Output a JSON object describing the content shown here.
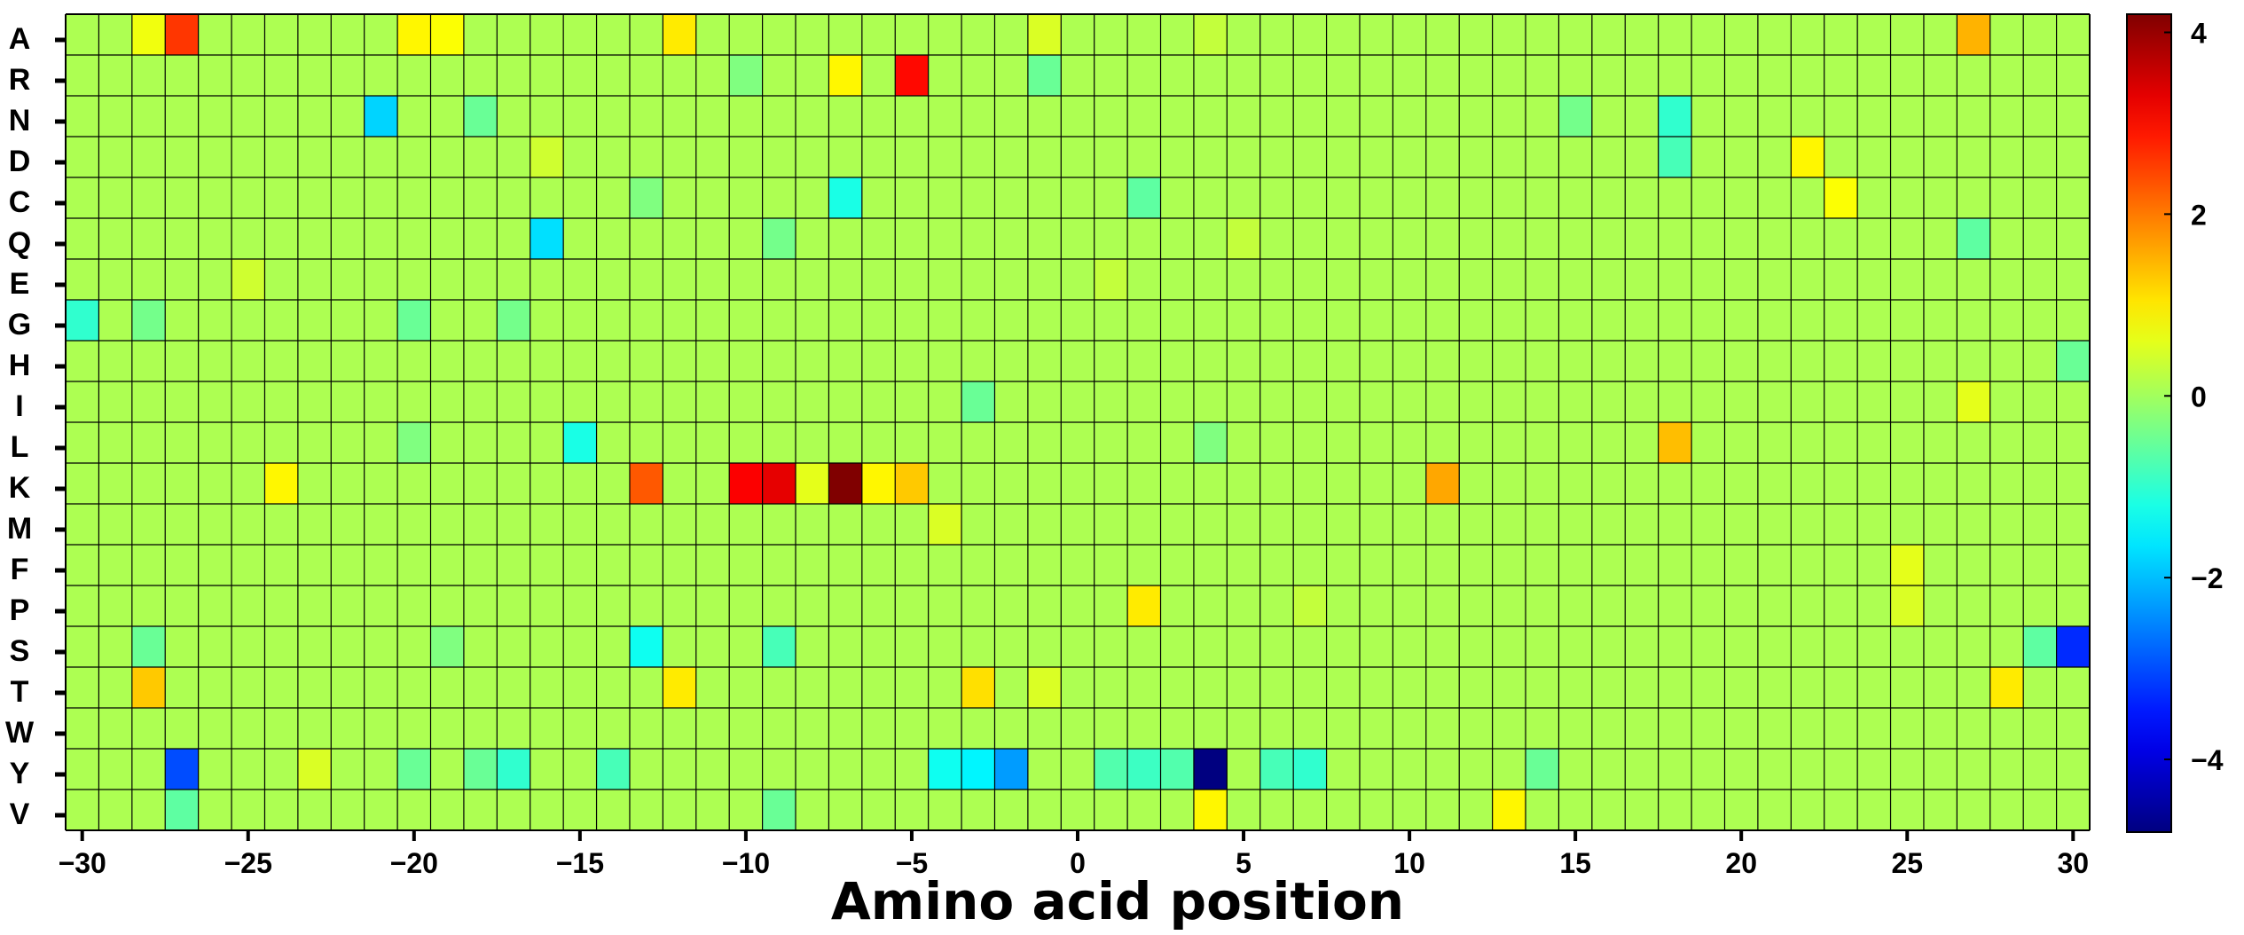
{
  "chart_data": {
    "type": "heatmap",
    "title": "",
    "xlabel": "Amino acid position",
    "ylabel": "",
    "x": [
      -30,
      -29,
      -28,
      -27,
      -26,
      -25,
      -24,
      -23,
      -22,
      -21,
      -20,
      -19,
      -18,
      -17,
      -16,
      -15,
      -14,
      -13,
      -12,
      -11,
      -10,
      -9,
      -8,
      -7,
      -6,
      -5,
      -4,
      -3,
      -2,
      -1,
      0,
      1,
      2,
      3,
      4,
      5,
      6,
      7,
      8,
      9,
      10,
      11,
      12,
      13,
      14,
      15,
      16,
      17,
      18,
      19,
      20,
      21,
      22,
      23,
      24,
      25,
      26,
      27,
      28,
      29,
      30
    ],
    "x_ticks": [
      -30,
      -25,
      -20,
      -15,
      -10,
      -5,
      0,
      5,
      10,
      15,
      20,
      25,
      30
    ],
    "x_tick_labels": [
      "−30",
      "−25",
      "−20",
      "−15",
      "−10",
      "−5",
      "0",
      "5",
      "10",
      "15",
      "20",
      "25",
      "30"
    ],
    "y": [
      "A",
      "R",
      "N",
      "D",
      "C",
      "Q",
      "E",
      "G",
      "H",
      "I",
      "L",
      "K",
      "M",
      "F",
      "P",
      "S",
      "T",
      "W",
      "Y",
      "V"
    ],
    "background_value": 0.1,
    "colorbar": {
      "colormap": "jet",
      "range": [
        -4.8,
        4.2
      ],
      "ticks": [
        4,
        2,
        0,
        -2,
        -4
      ],
      "tick_labels": [
        "4",
        "2",
        "0",
        "−2",
        "−4"
      ]
    },
    "cells": [
      {
        "row": "A",
        "x": -28,
        "v": 0.7
      },
      {
        "row": "A",
        "x": -27,
        "v": 2.6
      },
      {
        "row": "A",
        "x": -20,
        "v": 0.9
      },
      {
        "row": "A",
        "x": -19,
        "v": 0.8
      },
      {
        "row": "A",
        "x": -12,
        "v": 1.0
      },
      {
        "row": "A",
        "x": -1,
        "v": 0.5
      },
      {
        "row": "A",
        "x": 4,
        "v": 0.3
      },
      {
        "row": "A",
        "x": 27,
        "v": 1.5
      },
      {
        "row": "R",
        "x": -7,
        "v": 0.9
      },
      {
        "row": "R",
        "x": -5,
        "v": 3.0
      },
      {
        "row": "R",
        "x": -10,
        "v": -0.3
      },
      {
        "row": "R",
        "x": -1,
        "v": -0.5
      },
      {
        "row": "N",
        "x": -21,
        "v": -1.8
      },
      {
        "row": "N",
        "x": -18,
        "v": -0.5
      },
      {
        "row": "N",
        "x": 18,
        "v": -1.0
      },
      {
        "row": "N",
        "x": 15,
        "v": -0.4
      },
      {
        "row": "D",
        "x": -16,
        "v": 0.4
      },
      {
        "row": "D",
        "x": 18,
        "v": -0.8
      },
      {
        "row": "D",
        "x": 22,
        "v": 0.9
      },
      {
        "row": "C",
        "x": -7,
        "v": -1.2
      },
      {
        "row": "C",
        "x": 2,
        "v": -0.6
      },
      {
        "row": "C",
        "x": 23,
        "v": 0.8
      },
      {
        "row": "C",
        "x": -13,
        "v": -0.3
      },
      {
        "row": "Q",
        "x": -16,
        "v": -1.7
      },
      {
        "row": "Q",
        "x": -9,
        "v": -0.4
      },
      {
        "row": "Q",
        "x": 27,
        "v": -0.6
      },
      {
        "row": "Q",
        "x": 5,
        "v": 0.3
      },
      {
        "row": "E",
        "x": -25,
        "v": 0.4
      },
      {
        "row": "E",
        "x": 1,
        "v": 0.3
      },
      {
        "row": "G",
        "x": -30,
        "v": -1.0
      },
      {
        "row": "G",
        "x": -28,
        "v": -0.4
      },
      {
        "row": "G",
        "x": -20,
        "v": -0.5
      },
      {
        "row": "G",
        "x": -17,
        "v": -0.4
      },
      {
        "row": "H",
        "x": 30,
        "v": -0.5
      },
      {
        "row": "I",
        "x": -3,
        "v": -0.5
      },
      {
        "row": "I",
        "x": 27,
        "v": 0.6
      },
      {
        "row": "L",
        "x": -15,
        "v": -1.2
      },
      {
        "row": "L",
        "x": -20,
        "v": -0.3
      },
      {
        "row": "L",
        "x": 4,
        "v": -0.3
      },
      {
        "row": "L",
        "x": 18,
        "v": 1.4
      },
      {
        "row": "K",
        "x": -24,
        "v": 0.9
      },
      {
        "row": "K",
        "x": -13,
        "v": 2.3
      },
      {
        "row": "K",
        "x": -10,
        "v": 3.1
      },
      {
        "row": "K",
        "x": -9,
        "v": 3.3
      },
      {
        "row": "K",
        "x": -8,
        "v": 0.6
      },
      {
        "row": "K",
        "x": -7,
        "v": 4.2
      },
      {
        "row": "K",
        "x": -6,
        "v": 0.9
      },
      {
        "row": "K",
        "x": -5,
        "v": 1.3
      },
      {
        "row": "K",
        "x": 11,
        "v": 1.6
      },
      {
        "row": "M",
        "x": -4,
        "v": 0.5
      },
      {
        "row": "F",
        "x": 25,
        "v": 0.6
      },
      {
        "row": "P",
        "x": 2,
        "v": 1.0
      },
      {
        "row": "P",
        "x": 25,
        "v": 0.5
      },
      {
        "row": "P",
        "x": 7,
        "v": 0.3
      },
      {
        "row": "S",
        "x": -13,
        "v": -1.3
      },
      {
        "row": "S",
        "x": -9,
        "v": -0.8
      },
      {
        "row": "S",
        "x": -28,
        "v": -0.5
      },
      {
        "row": "S",
        "x": -19,
        "v": -0.3
      },
      {
        "row": "S",
        "x": 29,
        "v": -0.6
      },
      {
        "row": "S",
        "x": 30,
        "v": -3.3
      },
      {
        "row": "T",
        "x": -28,
        "v": 1.3
      },
      {
        "row": "T",
        "x": -12,
        "v": 1.0
      },
      {
        "row": "T",
        "x": -3,
        "v": 1.1
      },
      {
        "row": "T",
        "x": -1,
        "v": 0.5
      },
      {
        "row": "T",
        "x": 28,
        "v": 1.0
      },
      {
        "row": "Y",
        "x": -27,
        "v": -3.0
      },
      {
        "row": "Y",
        "x": -23,
        "v": 0.5
      },
      {
        "row": "Y",
        "x": -20,
        "v": -0.5
      },
      {
        "row": "Y",
        "x": -18,
        "v": -0.5
      },
      {
        "row": "Y",
        "x": -17,
        "v": -1.0
      },
      {
        "row": "Y",
        "x": -14,
        "v": -0.8
      },
      {
        "row": "Y",
        "x": -4,
        "v": -1.3
      },
      {
        "row": "Y",
        "x": -3,
        "v": -1.5
      },
      {
        "row": "Y",
        "x": -2,
        "v": -2.3
      },
      {
        "row": "Y",
        "x": 1,
        "v": -0.7
      },
      {
        "row": "Y",
        "x": 2,
        "v": -0.9
      },
      {
        "row": "Y",
        "x": 3,
        "v": -0.7
      },
      {
        "row": "Y",
        "x": 4,
        "v": -4.8
      },
      {
        "row": "Y",
        "x": 6,
        "v": -0.8
      },
      {
        "row": "Y",
        "x": 7,
        "v": -1.0
      },
      {
        "row": "Y",
        "x": 14,
        "v": -0.5
      },
      {
        "row": "V",
        "x": -27,
        "v": -0.6
      },
      {
        "row": "V",
        "x": -9,
        "v": -0.5
      },
      {
        "row": "V",
        "x": 4,
        "v": 0.9
      },
      {
        "row": "V",
        "x": 13,
        "v": 0.9
      }
    ]
  }
}
